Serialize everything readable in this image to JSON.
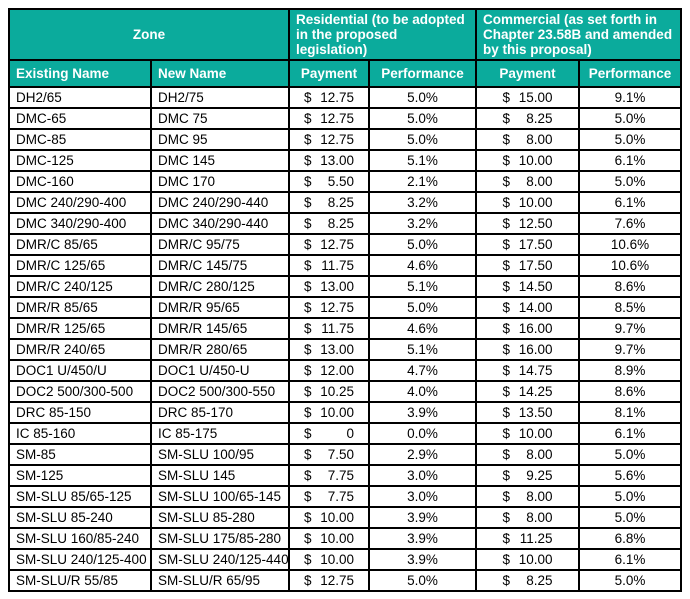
{
  "table": {
    "group_headers": [
      "Zone",
      "Residential (to be adopted in the proposed legislation)",
      "Commercial (as set forth in Chapter 23.58B and amended by this proposal)"
    ],
    "col_headers": [
      "Existing Name",
      "New Name",
      "Payment",
      "Performance",
      "Payment",
      "Performance"
    ],
    "rows": [
      [
        "DH2/65",
        "DH2/75",
        "$12.75",
        "5.0%",
        "$15.00",
        "9.1%"
      ],
      [
        "DMC-65",
        "DMC 75",
        "$12.75",
        "5.0%",
        "$ 8.25",
        "5.0%"
      ],
      [
        "DMC-85",
        "DMC 95",
        "$12.75",
        "5.0%",
        "$ 8.00",
        "5.0%"
      ],
      [
        "DMC-125",
        "DMC 145",
        "$13.00",
        "5.1%",
        "$10.00",
        "6.1%"
      ],
      [
        "DMC-160",
        "DMC 170",
        "$ 5.50",
        "2.1%",
        "$ 8.00",
        "5.0%"
      ],
      [
        "DMC 240/290-400",
        "DMC 240/290-440",
        "$ 8.25",
        "3.2%",
        "$10.00",
        "6.1%"
      ],
      [
        "DMC 340/290-400",
        "DMC 340/290-440",
        "$ 8.25",
        "3.2%",
        "$12.50",
        "7.6%"
      ],
      [
        "DMR/C 85/65",
        "DMR/C 95/75",
        "$12.75",
        "5.0%",
        "$17.50",
        "10.6%"
      ],
      [
        "DMR/C 125/65",
        "DMR/C 145/75",
        "$11.75",
        "4.6%",
        "$17.50",
        "10.6%"
      ],
      [
        "DMR/C 240/125",
        "DMR/C 280/125",
        "$13.00",
        "5.1%",
        "$14.50",
        "8.6%"
      ],
      [
        "DMR/R 85/65",
        "DMR/R 95/65",
        "$12.75",
        "5.0%",
        "$14.00",
        "8.5%"
      ],
      [
        "DMR/R 125/65",
        "DMR/R 145/65",
        "$11.75",
        "4.6%",
        "$16.00",
        "9.7%"
      ],
      [
        "DMR/R 240/65",
        "DMR/R 280/65",
        "$13.00",
        "5.1%",
        "$16.00",
        "9.7%"
      ],
      [
        "DOC1 U/450/U",
        "DOC1 U/450-U",
        "$12.00",
        "4.7%",
        "$14.75",
        "8.9%"
      ],
      [
        "DOC2 500/300-500",
        "DOC2 500/300-550",
        "$10.25",
        "4.0%",
        "$14.25",
        "8.6%"
      ],
      [
        "DRC 85-150",
        "DRC 85-170",
        "$10.00",
        "3.9%",
        "$13.50",
        "8.1%"
      ],
      [
        "IC 85-160",
        "IC 85-175",
        "$ 0",
        "0.0%",
        "$10.00",
        "6.1%"
      ],
      [
        "SM-85",
        "SM-SLU 100/95",
        "$ 7.50",
        "2.9%",
        "$ 8.00",
        "5.0%"
      ],
      [
        "SM-125",
        "SM-SLU 145",
        "$ 7.75",
        "3.0%",
        "$ 9.25",
        "5.6%"
      ],
      [
        "SM-SLU 85/65-125",
        "SM-SLU 100/65-145",
        "$ 7.75",
        "3.0%",
        "$ 8.00",
        "5.0%"
      ],
      [
        "SM-SLU 85-240",
        "SM-SLU 85-280",
        "$10.00",
        "3.9%",
        "$ 8.00",
        "5.0%"
      ],
      [
        "SM-SLU 160/85-240",
        "SM-SLU 175/85-280",
        "$10.00",
        "3.9%",
        "$11.25",
        "6.8%"
      ],
      [
        "SM-SLU 240/125-400",
        "SM-SLU 240/125-440",
        "$10.00",
        "3.9%",
        "$10.00",
        "6.1%"
      ],
      [
        "SM-SLU/R 55/85",
        "SM-SLU/R 65/95",
        "$12.75",
        "5.0%",
        "$ 8.25",
        "5.0%"
      ]
    ]
  },
  "colors": {
    "header_bg": "#0bab9c",
    "header_text": "#ffffff",
    "border": "#000000",
    "cell_text": "#000000"
  }
}
